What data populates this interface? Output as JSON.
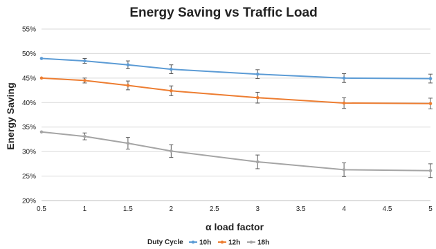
{
  "chart_data": {
    "type": "line",
    "title": "Energy Saving vs Traffic Load",
    "xlabel": "α load factor",
    "ylabel": "Energy Saving",
    "x": [
      0.5,
      1,
      1.5,
      2,
      3,
      4,
      5
    ],
    "xlim": [
      0.5,
      5
    ],
    "ylim": [
      20,
      55
    ],
    "x_ticks": [
      "0.5",
      "1",
      "1.5",
      "2",
      "2.5",
      "3",
      "3.5",
      "4",
      "4.5",
      "5"
    ],
    "y_ticks": [
      "20%",
      "25%",
      "30%",
      "35%",
      "40%",
      "45%",
      "50%",
      "55%"
    ],
    "grid": "horizontal",
    "legend": {
      "placement": "bottom",
      "title": "Duty Cycle"
    },
    "series": [
      {
        "name": "10h",
        "color": "#5b9bd5",
        "values": [
          49.0,
          48.5,
          47.7,
          46.8,
          45.8,
          45.0,
          44.9
        ],
        "errors": [
          0.0,
          0.5,
          0.8,
          0.9,
          0.9,
          0.9,
          0.9
        ]
      },
      {
        "name": "12h",
        "color": "#ed7d31",
        "values": [
          45.0,
          44.5,
          43.5,
          42.4,
          41.0,
          39.9,
          39.8
        ],
        "errors": [
          0.0,
          0.5,
          0.9,
          1.0,
          1.1,
          1.1,
          1.1
        ]
      },
      {
        "name": "18h",
        "color": "#a5a5a5",
        "values": [
          34.0,
          33.1,
          31.7,
          30.1,
          27.9,
          26.3,
          26.1
        ],
        "errors": [
          0.0,
          0.7,
          1.2,
          1.3,
          1.4,
          1.4,
          1.4
        ]
      }
    ]
  }
}
